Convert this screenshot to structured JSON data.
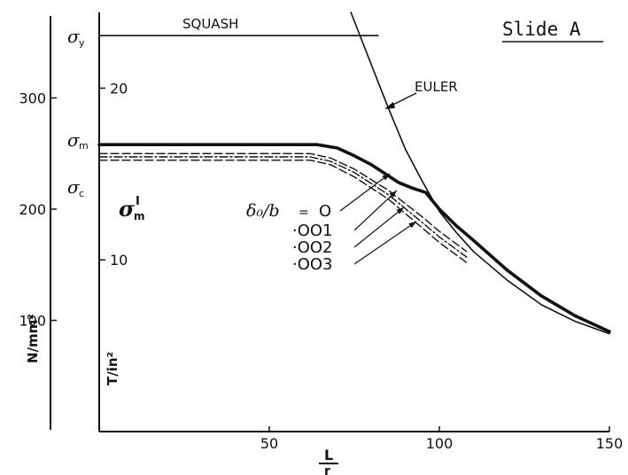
{
  "slide_label": "Slide A",
  "chart_data": {
    "type": "line",
    "xlabel_numerator": "L",
    "xlabel_denominator": "r",
    "xlim": [
      0,
      150
    ],
    "x_ticks": [
      "50",
      "100",
      "150"
    ],
    "y_left": {
      "label": "N/mm²",
      "ylim": [
        0,
        370
      ],
      "ticks": [
        "100",
        "200",
        "300"
      ]
    },
    "y_right": {
      "label": "T/in²",
      "ticks": [
        "10",
        "20"
      ]
    },
    "stress_labels": {
      "sigma_y": "σ",
      "sigma_y_sub": "y",
      "sigma_m": "σ",
      "sigma_m_sub": "m",
      "sigma_c": "σ",
      "sigma_c_sub": "c",
      "sigma_m_prime": "σ",
      "sigma_m_prime_sub": "m",
      "sigma_m_prime_sup": "I"
    },
    "legend_header": "δ₀/b",
    "legend_equals": "=",
    "annotations": {
      "squash": "SQUASH",
      "euler": "EULER"
    },
    "series": [
      {
        "name": "SQUASH",
        "style": "solid-thin",
        "x": [
          0,
          82
        ],
        "y": [
          356,
          356
        ]
      },
      {
        "name": "EULER",
        "style": "solid-thin",
        "x": [
          74,
          80,
          85,
          90,
          95,
          100,
          105,
          110,
          120,
          130,
          140,
          150
        ],
        "y": [
          380,
          330,
          291,
          254,
          225,
          198,
          179,
          162,
          136,
          114,
          99,
          88
        ]
      },
      {
        "name": "O",
        "style": "thick",
        "x": [
          0,
          40,
          64,
          70,
          75,
          80,
          85,
          88,
          92,
          96,
          100,
          105,
          110,
          120,
          130,
          140,
          150
        ],
        "y": [
          258,
          258,
          258,
          255,
          248,
          240,
          230,
          224,
          219,
          215,
          200,
          185,
          172,
          145,
          122,
          104,
          90
        ]
      },
      {
        "name": "·OO1",
        "style": "dashed",
        "x": [
          0,
          40,
          62,
          68,
          75,
          85,
          95,
          100,
          108
        ],
        "y": [
          250,
          250,
          250,
          246,
          236,
          217,
          193,
          180,
          162
        ]
      },
      {
        "name": "·OO2",
        "style": "dashdot",
        "x": [
          0,
          40,
          62,
          68,
          75,
          85,
          95,
          100,
          108
        ],
        "y": [
          247,
          247,
          247,
          243,
          233,
          213,
          188,
          175,
          157
        ]
      },
      {
        "name": "·OO3",
        "style": "dashed",
        "x": [
          0,
          40,
          62,
          68,
          75,
          85,
          95,
          100,
          108
        ],
        "y": [
          244,
          244,
          244,
          240,
          229,
          209,
          183,
          170,
          152
        ]
      }
    ],
    "legend_entries": [
      "O",
      "·OO1",
      "·OO2",
      "·OO3"
    ]
  }
}
